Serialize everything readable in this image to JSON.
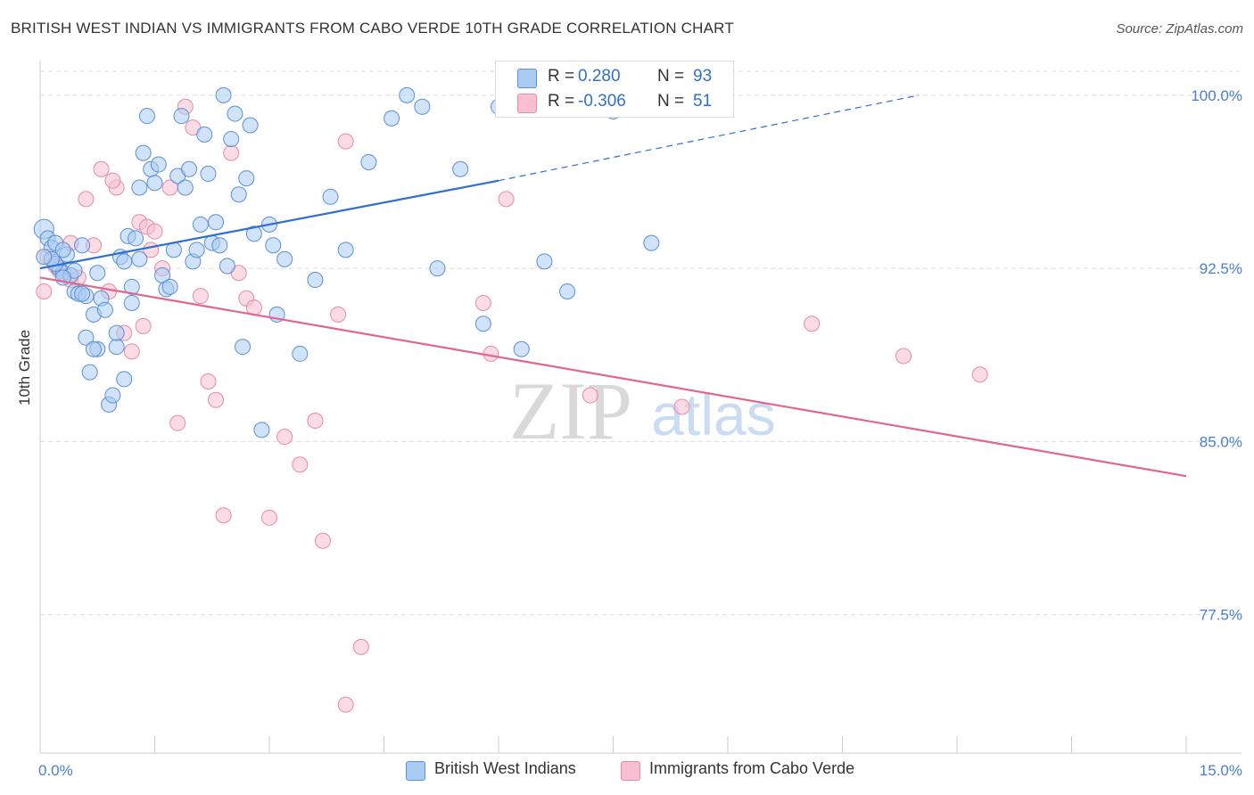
{
  "title": "BRITISH WEST INDIAN VS IMMIGRANTS FROM CABO VERDE 10TH GRADE CORRELATION CHART",
  "source": "Source: ZipAtlas.com",
  "watermark": {
    "zip": "ZIP",
    "atlas": "atlas"
  },
  "colors": {
    "blue_fill": "#aaccf2",
    "blue_stroke": "#5b8fd6",
    "blue_line": "#2f6fd0",
    "pink_fill": "#f7bfd0",
    "pink_stroke": "#e68aa8",
    "pink_line": "#e0668f",
    "axis_text": "#4a7fd0",
    "grid": "#dddddd"
  },
  "legend": {
    "rows": [
      {
        "r_label": "R =",
        "r_value": "0.280",
        "n_label": "N =",
        "n_value": "93"
      },
      {
        "r_label": "R =",
        "r_value": "-0.306",
        "n_label": "N =",
        "n_value": "51"
      }
    ]
  },
  "chart_data": {
    "type": "scatter",
    "xlabel": "",
    "ylabel": "10th Grade",
    "xlim": [
      0.0,
      15.0
    ],
    "ylim": [
      71.5,
      101.5
    ],
    "x_tick_labels": [
      "0.0%",
      "15.0%"
    ],
    "y_ticks": [
      77.5,
      85.0,
      92.5,
      100.0
    ],
    "y_tick_labels": [
      "77.5%",
      "85.0%",
      "92.5%",
      "100.0%"
    ],
    "grid": "horizontal dashed",
    "legend_position": "top-center",
    "series": [
      {
        "name": "British West Indians",
        "R": 0.28,
        "N": 93,
        "trend": {
          "x0": 0.0,
          "y0": 92.5,
          "x_solid_end": 6.0,
          "y_solid_end": 96.3,
          "x_dash_end": 11.5,
          "y_dash_end": 100.0
        },
        "points": [
          [
            0.05,
            94.2
          ],
          [
            0.1,
            93.8
          ],
          [
            0.15,
            93.4
          ],
          [
            0.2,
            93.6
          ],
          [
            0.25,
            92.5
          ],
          [
            0.3,
            92.3
          ],
          [
            0.35,
            93.1
          ],
          [
            0.4,
            92.2
          ],
          [
            0.45,
            91.5
          ],
          [
            0.5,
            91.4
          ],
          [
            0.55,
            93.5
          ],
          [
            0.6,
            89.5
          ],
          [
            0.65,
            88.0
          ],
          [
            0.7,
            90.5
          ],
          [
            0.75,
            89.0
          ],
          [
            0.8,
            91.2
          ],
          [
            0.85,
            90.7
          ],
          [
            0.9,
            86.6
          ],
          [
            0.95,
            87.0
          ],
          [
            1.0,
            89.1
          ],
          [
            1.05,
            93.0
          ],
          [
            1.1,
            92.8
          ],
          [
            1.15,
            93.9
          ],
          [
            1.2,
            91.7
          ],
          [
            1.25,
            93.8
          ],
          [
            1.3,
            92.9
          ],
          [
            1.35,
            97.5
          ],
          [
            1.4,
            99.1
          ],
          [
            1.45,
            96.8
          ],
          [
            1.5,
            96.2
          ],
          [
            1.55,
            97.0
          ],
          [
            1.6,
            92.2
          ],
          [
            1.65,
            91.6
          ],
          [
            1.7,
            91.7
          ],
          [
            1.75,
            93.3
          ],
          [
            1.8,
            96.5
          ],
          [
            1.85,
            99.1
          ],
          [
            1.9,
            96.0
          ],
          [
            1.95,
            96.8
          ],
          [
            2.0,
            92.8
          ],
          [
            2.05,
            93.3
          ],
          [
            2.1,
            94.4
          ],
          [
            2.15,
            98.3
          ],
          [
            2.2,
            96.6
          ],
          [
            2.25,
            93.6
          ],
          [
            2.3,
            94.5
          ],
          [
            2.35,
            93.5
          ],
          [
            2.4,
            100.0
          ],
          [
            2.45,
            92.6
          ],
          [
            2.5,
            98.1
          ],
          [
            2.55,
            99.2
          ],
          [
            2.6,
            95.7
          ],
          [
            2.65,
            89.1
          ],
          [
            2.7,
            96.4
          ],
          [
            2.75,
            98.7
          ],
          [
            2.8,
            94.0
          ],
          [
            2.9,
            85.5
          ],
          [
            3.0,
            94.4
          ],
          [
            3.05,
            93.5
          ],
          [
            3.1,
            90.5
          ],
          [
            3.2,
            92.9
          ],
          [
            3.4,
            88.8
          ],
          [
            3.6,
            92.0
          ],
          [
            3.8,
            95.6
          ],
          [
            4.0,
            93.3
          ],
          [
            4.3,
            97.1
          ],
          [
            4.6,
            99.0
          ],
          [
            4.8,
            100.0
          ],
          [
            5.0,
            99.5
          ],
          [
            5.2,
            92.5
          ],
          [
            5.5,
            96.8
          ],
          [
            5.8,
            90.1
          ],
          [
            6.0,
            99.5
          ],
          [
            6.3,
            89.0
          ],
          [
            6.6,
            92.8
          ],
          [
            6.9,
            91.5
          ],
          [
            7.2,
            100.0
          ],
          [
            7.5,
            99.3
          ],
          [
            8.0,
            93.6
          ],
          [
            0.2,
            92.7
          ],
          [
            0.3,
            93.3
          ],
          [
            0.45,
            92.4
          ],
          [
            0.6,
            91.3
          ],
          [
            0.7,
            89.0
          ],
          [
            0.75,
            92.3
          ],
          [
            1.0,
            89.7
          ],
          [
            1.1,
            87.7
          ],
          [
            1.2,
            91.0
          ],
          [
            1.3,
            96.0
          ],
          [
            0.55,
            91.4
          ],
          [
            0.3,
            92.1
          ],
          [
            0.15,
            92.9
          ],
          [
            0.05,
            93.0
          ]
        ]
      },
      {
        "name": "Immigrants from Cabo Verde",
        "R": -0.306,
        "N": 51,
        "trend": {
          "x0": 0.0,
          "y0": 92.1,
          "x1": 15.0,
          "y1": 83.5
        },
        "points": [
          [
            0.05,
            91.5
          ],
          [
            0.1,
            93.0
          ],
          [
            0.2,
            92.6
          ],
          [
            0.3,
            92.3
          ],
          [
            0.4,
            92.0
          ],
          [
            0.5,
            92.1
          ],
          [
            0.6,
            95.5
          ],
          [
            0.7,
            93.5
          ],
          [
            0.8,
            96.8
          ],
          [
            0.9,
            91.5
          ],
          [
            1.0,
            96.0
          ],
          [
            1.1,
            89.7
          ],
          [
            1.2,
            88.9
          ],
          [
            1.3,
            94.5
          ],
          [
            1.35,
            90.0
          ],
          [
            1.4,
            94.3
          ],
          [
            1.5,
            94.1
          ],
          [
            1.6,
            92.5
          ],
          [
            1.7,
            96.0
          ],
          [
            1.8,
            85.8
          ],
          [
            1.9,
            99.5
          ],
          [
            2.0,
            98.6
          ],
          [
            2.1,
            91.3
          ],
          [
            2.2,
            87.6
          ],
          [
            2.3,
            86.8
          ],
          [
            2.4,
            81.8
          ],
          [
            2.5,
            97.5
          ],
          [
            2.6,
            92.3
          ],
          [
            2.7,
            91.2
          ],
          [
            2.8,
            90.8
          ],
          [
            3.0,
            81.7
          ],
          [
            3.2,
            85.2
          ],
          [
            3.4,
            84.0
          ],
          [
            3.6,
            85.9
          ],
          [
            3.7,
            80.7
          ],
          [
            3.9,
            90.5
          ],
          [
            4.0,
            98.0
          ],
          [
            4.2,
            76.1
          ],
          [
            4.0,
            73.6
          ],
          [
            5.8,
            91.0
          ],
          [
            5.9,
            88.8
          ],
          [
            6.1,
            95.5
          ],
          [
            7.2,
            87.0
          ],
          [
            8.4,
            86.5
          ],
          [
            10.1,
            90.1
          ],
          [
            11.3,
            88.7
          ],
          [
            12.3,
            87.9
          ],
          [
            0.4,
            93.6
          ],
          [
            0.95,
            96.3
          ],
          [
            0.25,
            92.4
          ],
          [
            1.45,
            93.3
          ]
        ]
      }
    ]
  },
  "bottom_legend": [
    {
      "label": "British West Indians"
    },
    {
      "label": "Immigrants from Cabo Verde"
    }
  ]
}
